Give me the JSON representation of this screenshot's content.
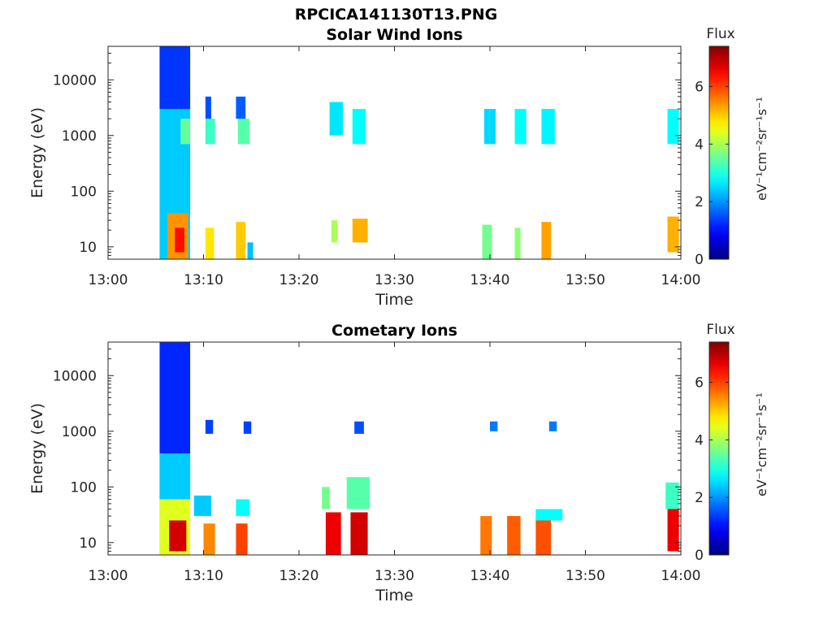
{
  "figure": {
    "title": "RPCICA141130T13.PNG"
  },
  "chart_data": [
    {
      "type": "heatmap",
      "title": "Solar Wind Ions",
      "xlabel": "Time",
      "ylabel": "Energy (eV)",
      "x_ticks": [
        "13:00",
        "13:10",
        "13:20",
        "13:30",
        "13:40",
        "13:50",
        "14:00"
      ],
      "xlim": [
        "13:00",
        "14:00"
      ],
      "y_ticks": [
        "10",
        "100",
        "1000",
        "10000"
      ],
      "ylim": [
        6,
        40000
      ],
      "yscale": "log",
      "colorbar": {
        "title": "Flux",
        "label": "eV⁻¹cm⁻²sr⁻¹s⁻¹",
        "range": [
          0,
          7.4
        ],
        "ticks": [
          "0",
          "2",
          "4",
          "6"
        ],
        "colormap": "jet"
      },
      "blocks": [
        {
          "t0": 5.4,
          "t1": 8.6,
          "e0": 6,
          "e1": 40000,
          "flux": 2.4
        },
        {
          "t0": 6.2,
          "t1": 8.4,
          "e0": 6,
          "e1": 40,
          "flux": 5.4
        },
        {
          "t0": 7.0,
          "t1": 8.0,
          "e0": 8,
          "e1": 22,
          "flux": 6.4
        },
        {
          "t0": 7.6,
          "t1": 8.6,
          "e0": 700,
          "e1": 2000,
          "flux": 3.5
        },
        {
          "t0": 5.4,
          "t1": 8.6,
          "e0": 3000,
          "e1": 40000,
          "flux": 1.3
        },
        {
          "t0": 10.2,
          "t1": 11.2,
          "e0": 700,
          "e1": 2000,
          "flux": 3.2
        },
        {
          "t0": 10.2,
          "t1": 10.8,
          "e0": 2000,
          "e1": 5000,
          "flux": 1.5
        },
        {
          "t0": 10.2,
          "t1": 11.1,
          "e0": 6,
          "e1": 22,
          "flux": 4.8
        },
        {
          "t0": 13.6,
          "t1": 14.8,
          "e0": 700,
          "e1": 2000,
          "flux": 3.4
        },
        {
          "t0": 13.4,
          "t1": 14.4,
          "e0": 2000,
          "e1": 5000,
          "flux": 1.6
        },
        {
          "t0": 13.4,
          "t1": 14.4,
          "e0": 6,
          "e1": 28,
          "flux": 5.0
        },
        {
          "t0": 14.6,
          "t1": 15.2,
          "e0": 6,
          "e1": 12,
          "flux": 2.3
        },
        {
          "t0": 23.2,
          "t1": 24.6,
          "e0": 1000,
          "e1": 4000,
          "flux": 2.6
        },
        {
          "t0": 23.4,
          "t1": 24.0,
          "e0": 12,
          "e1": 30,
          "flux": 4.0
        },
        {
          "t0": 25.6,
          "t1": 27.0,
          "e0": 700,
          "e1": 3000,
          "flux": 2.8
        },
        {
          "t0": 25.6,
          "t1": 27.2,
          "e0": 12,
          "e1": 32,
          "flux": 5.2
        },
        {
          "t0": 39.4,
          "t1": 40.6,
          "e0": 700,
          "e1": 3000,
          "flux": 2.5
        },
        {
          "t0": 39.2,
          "t1": 40.2,
          "e0": 6,
          "e1": 25,
          "flux": 3.6
        },
        {
          "t0": 42.6,
          "t1": 43.8,
          "e0": 700,
          "e1": 3000,
          "flux": 2.8
        },
        {
          "t0": 42.6,
          "t1": 43.2,
          "e0": 6,
          "e1": 22,
          "flux": 3.8
        },
        {
          "t0": 45.4,
          "t1": 46.8,
          "e0": 700,
          "e1": 3000,
          "flux": 2.7
        },
        {
          "t0": 45.4,
          "t1": 46.4,
          "e0": 6,
          "e1": 28,
          "flux": 5.3
        },
        {
          "t0": 58.6,
          "t1": 59.8,
          "e0": 700,
          "e1": 3000,
          "flux": 2.8
        },
        {
          "t0": 58.6,
          "t1": 59.8,
          "e0": 8,
          "e1": 35,
          "flux": 5.2
        }
      ]
    },
    {
      "type": "heatmap",
      "title": "Cometary Ions",
      "xlabel": "Time",
      "ylabel": "Energy (eV)",
      "x_ticks": [
        "13:00",
        "13:10",
        "13:20",
        "13:30",
        "13:40",
        "13:50",
        "14:00"
      ],
      "xlim": [
        "13:00",
        "14:00"
      ],
      "y_ticks": [
        "10",
        "100",
        "1000",
        "10000"
      ],
      "ylim": [
        6,
        40000
      ],
      "yscale": "log",
      "colorbar": {
        "title": "Flux",
        "label": "eV⁻¹cm⁻²sr⁻¹s⁻¹",
        "range": [
          0,
          7.4
        ],
        "ticks": [
          "0",
          "2",
          "4",
          "6"
        ],
        "colormap": "jet"
      },
      "blocks": [
        {
          "t0": 5.4,
          "t1": 8.6,
          "e0": 6,
          "e1": 40000,
          "flux": 1.2
        },
        {
          "t0": 5.4,
          "t1": 8.6,
          "e0": 60,
          "e1": 400,
          "flux": 2.4
        },
        {
          "t0": 5.4,
          "t1": 8.6,
          "e0": 6,
          "e1": 60,
          "flux": 4.4
        },
        {
          "t0": 6.4,
          "t1": 8.2,
          "e0": 7,
          "e1": 25,
          "flux": 6.8
        },
        {
          "t0": 9.0,
          "t1": 10.8,
          "e0": 30,
          "e1": 70,
          "flux": 2.4
        },
        {
          "t0": 10.0,
          "t1": 11.2,
          "e0": 6,
          "e1": 22,
          "flux": 5.5
        },
        {
          "t0": 10.2,
          "t1": 11.0,
          "e0": 900,
          "e1": 1600,
          "flux": 1.4
        },
        {
          "t0": 13.4,
          "t1": 14.8,
          "e0": 30,
          "e1": 60,
          "flux": 2.8
        },
        {
          "t0": 13.4,
          "t1": 14.6,
          "e0": 6,
          "e1": 22,
          "flux": 6.0
        },
        {
          "t0": 14.2,
          "t1": 15.0,
          "e0": 900,
          "e1": 1500,
          "flux": 1.4
        },
        {
          "t0": 22.4,
          "t1": 23.2,
          "e0": 40,
          "e1": 100,
          "flux": 3.6
        },
        {
          "t0": 22.8,
          "t1": 24.4,
          "e0": 6,
          "e1": 35,
          "flux": 6.6
        },
        {
          "t0": 25.0,
          "t1": 27.4,
          "e0": 40,
          "e1": 150,
          "flux": 3.4
        },
        {
          "t0": 25.4,
          "t1": 27.2,
          "e0": 6,
          "e1": 35,
          "flux": 6.8
        },
        {
          "t0": 25.8,
          "t1": 26.8,
          "e0": 900,
          "e1": 1500,
          "flux": 1.5
        },
        {
          "t0": 39.0,
          "t1": 40.2,
          "e0": 6,
          "e1": 30,
          "flux": 5.6
        },
        {
          "t0": 40.0,
          "t1": 40.8,
          "e0": 1000,
          "e1": 1500,
          "flux": 1.8
        },
        {
          "t0": 41.8,
          "t1": 43.2,
          "e0": 6,
          "e1": 30,
          "flux": 5.8
        },
        {
          "t0": 44.8,
          "t1": 46.4,
          "e0": 6,
          "e1": 30,
          "flux": 5.9
        },
        {
          "t0": 44.8,
          "t1": 47.6,
          "e0": 25,
          "e1": 40,
          "flux": 2.8
        },
        {
          "t0": 46.2,
          "t1": 47.0,
          "e0": 1000,
          "e1": 1500,
          "flux": 1.8
        },
        {
          "t0": 58.4,
          "t1": 59.8,
          "e0": 40,
          "e1": 120,
          "flux": 3.2
        },
        {
          "t0": 58.6,
          "t1": 59.8,
          "e0": 7,
          "e1": 40,
          "flux": 6.6
        }
      ]
    }
  ]
}
